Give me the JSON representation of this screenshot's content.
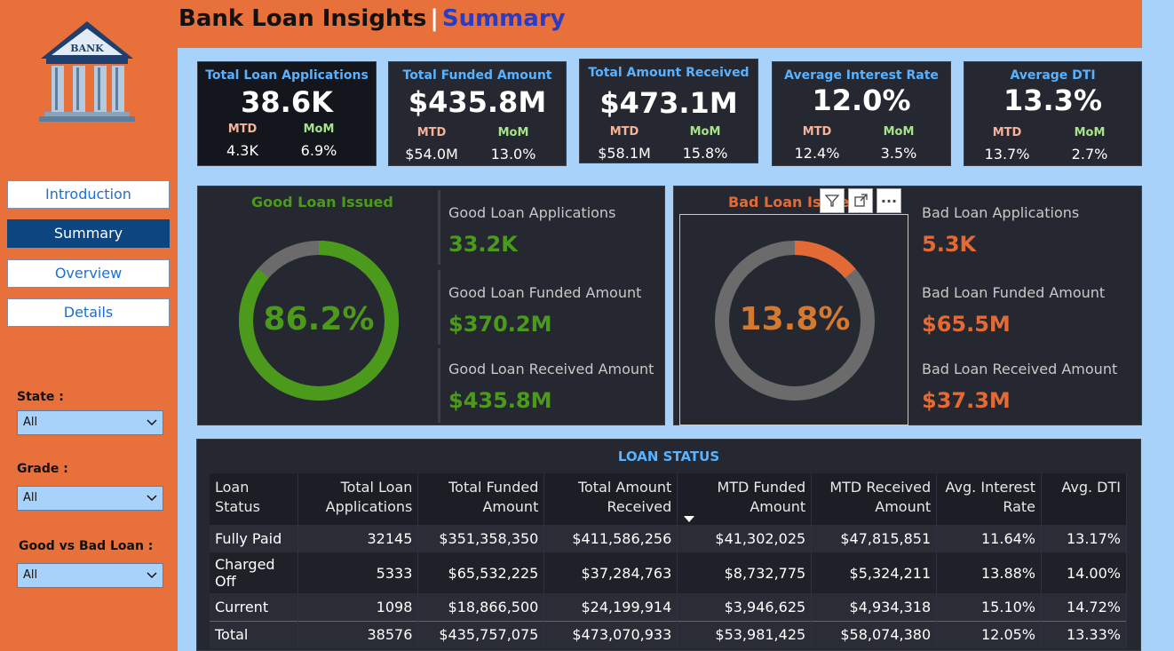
{
  "header": {
    "title_main": "Bank Loan Insights",
    "separator": "|",
    "title_page": "Summary"
  },
  "logo": {
    "text": "BANK"
  },
  "nav": {
    "items": [
      {
        "label": "Introduction",
        "active": false
      },
      {
        "label": "Summary",
        "active": true
      },
      {
        "label": "Overview",
        "active": false
      },
      {
        "label": "Details",
        "active": false
      }
    ]
  },
  "filters": {
    "state": {
      "label": "State :",
      "value": "All"
    },
    "grade": {
      "label": "Grade :",
      "value": "All"
    },
    "good_bad": {
      "label": "Good vs Bad Loan :",
      "value": "All"
    }
  },
  "kpis": [
    {
      "title": "Total Loan Applications",
      "value": "38.6K",
      "mtd_label": "MTD",
      "mtd": "4.3K",
      "mom_label": "MoM",
      "mom": "6.9%"
    },
    {
      "title": "Total Funded Amount",
      "value": "$435.8M",
      "mtd_label": "MTD",
      "mtd": "$54.0M",
      "mom_label": "MoM",
      "mom": "13.0%"
    },
    {
      "title": "Total Amount Received",
      "value": "$473.1M",
      "mtd_label": "MTD",
      "mtd": "$58.1M",
      "mom_label": "MoM",
      "mom": "15.8%"
    },
    {
      "title": "Average Interest Rate",
      "value": "12.0%",
      "mtd_label": "MTD",
      "mtd": "12.4%",
      "mom_label": "MoM",
      "mom": "3.5%"
    },
    {
      "title": "Average DTI",
      "value": "13.3%",
      "mtd_label": "MTD",
      "mtd": "13.7%",
      "mom_label": "MoM",
      "mom": "2.7%"
    }
  ],
  "good_loan": {
    "title": "Good Loan Issued",
    "percent_label": "86.2%",
    "percent": 0.862,
    "color": "#4c9a1c",
    "track_color": "#6b6b6b",
    "metrics": [
      {
        "label": "Good Loan Applications",
        "value": "33.2K"
      },
      {
        "label": "Good Loan Funded Amount",
        "value": "$370.2M"
      },
      {
        "label": "Good Loan Received Amount",
        "value": "$435.8M"
      }
    ]
  },
  "bad_loan": {
    "title": "Bad Loan Issued",
    "percent_label": "13.8%",
    "percent": 0.138,
    "color": "#e46a35",
    "label_color": "#d4792f",
    "track_color": "#6b6b6b",
    "metrics": [
      {
        "label": "Bad Loan Applications",
        "value": "5.3K"
      },
      {
        "label": "Bad Loan Funded Amount",
        "value": "$65.5M"
      },
      {
        "label": "Bad Loan Received Amount",
        "value": "$37.3M"
      }
    ]
  },
  "toolbar": {
    "filter_icon": "filter-icon",
    "focus_icon": "focus-mode-icon",
    "more_icon": "more-options-icon",
    "more_label": "···"
  },
  "loan_status": {
    "title": "LOAN STATUS",
    "columns": [
      [
        "Loan Status"
      ],
      [
        "Total Loan",
        "Applications"
      ],
      [
        "Total Funded",
        "Amount"
      ],
      [
        "Total Amount",
        "Received"
      ],
      [
        "MTD Funded",
        "Amount"
      ],
      [
        "MTD Received",
        "Amount"
      ],
      [
        "Avg. Interest",
        "Rate"
      ],
      [
        "Avg. DTI"
      ]
    ],
    "rows": [
      [
        "Fully Paid",
        "32145",
        "$351,358,350",
        "$411,586,256",
        "$41,302,025",
        "$47,815,851",
        "11.64%",
        "13.17%"
      ],
      [
        "Charged Off",
        "5333",
        "$65,532,225",
        "$37,284,763",
        "$8,732,775",
        "$5,324,211",
        "13.88%",
        "14.00%"
      ],
      [
        "Current",
        "1098",
        "$18,866,500",
        "$24,199,914",
        "$3,946,625",
        "$4,934,318",
        "15.10%",
        "14.72%"
      ]
    ],
    "total": [
      "Total",
      "38576",
      "$435,757,075",
      "$473,070,933",
      "$53,981,425",
      "$58,074,380",
      "12.05%",
      "13.33%"
    ]
  }
}
